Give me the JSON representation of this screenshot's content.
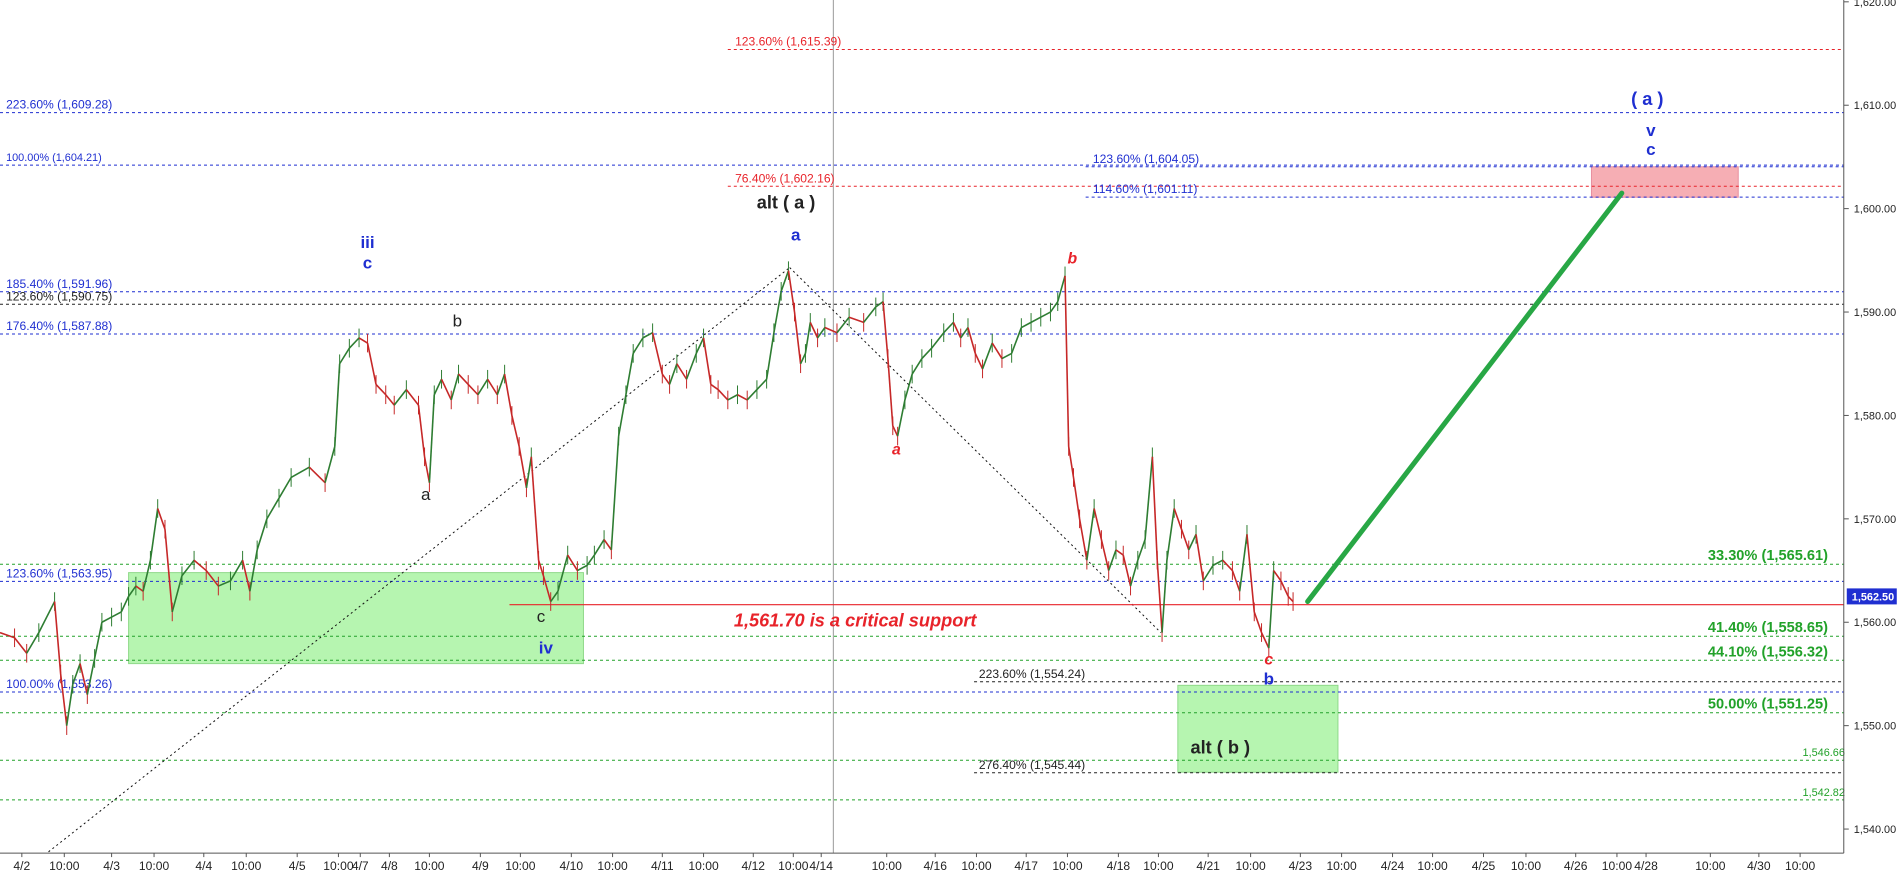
{
  "chart_data": {
    "type": "line",
    "title": "",
    "xlabel": "",
    "ylabel": "",
    "ylim": [
      1537.5,
      1620.0
    ],
    "colors": {
      "background": "#ffffff",
      "up_candle": "#2e7d32",
      "down_candle": "#c62828",
      "blue_fib": "#1f2fd1",
      "red_fib": "#e8232a",
      "green_fib": "#22a22a",
      "black_fib": "#222222",
      "support": "#e8232a",
      "green_zone": "#b6f5b0",
      "pink_zone": "#f6aeb4",
      "projection": "#28a745",
      "wave_blue": "#1f2fd1",
      "wave_red": "#e8232a",
      "wave_black": "#111111",
      "last_price_box": "#1f2fd1"
    },
    "y_axis": {
      "ticks": [
        1540,
        1550,
        1560,
        1570,
        1580,
        1590,
        1600,
        1610,
        1620
      ],
      "tick_labels": [
        "1,540.00",
        "1,550.00",
        "1,560.00",
        "1,570.00",
        "1,580.00",
        "1,590.00",
        "1,600.00",
        "1,610.00",
        "1,620.00"
      ],
      "last_price": 1562.5,
      "last_price_label": "1,562.50"
    },
    "x_axis": {
      "range": [
        0,
        1510
      ],
      "ticks": [
        {
          "x": 18,
          "label": "4/2"
        },
        {
          "x": 53,
          "label": "10:00"
        },
        {
          "x": 92,
          "label": "4/3"
        },
        {
          "x": 127,
          "label": "10:00"
        },
        {
          "x": 168,
          "label": "4/4"
        },
        {
          "x": 203,
          "label": "10:00"
        },
        {
          "x": 245,
          "label": "4/5"
        },
        {
          "x": 279,
          "label": "10:00"
        },
        {
          "x": 297,
          "label": "4/7"
        },
        {
          "x": 321,
          "label": "4/8"
        },
        {
          "x": 354,
          "label": "10:00"
        },
        {
          "x": 396,
          "label": "4/9"
        },
        {
          "x": 429,
          "label": "10:00"
        },
        {
          "x": 471,
          "label": "4/10"
        },
        {
          "x": 505,
          "label": "10:00"
        },
        {
          "x": 546,
          "label": "4/11"
        },
        {
          "x": 580,
          "label": "10:00"
        },
        {
          "x": 621,
          "label": "4/12"
        },
        {
          "x": 654,
          "label": "10:00"
        },
        {
          "x": 677,
          "label": "4/14"
        },
        {
          "x": 731,
          "label": "10:00"
        },
        {
          "x": 771,
          "label": "4/16"
        },
        {
          "x": 805,
          "label": "10:00"
        },
        {
          "x": 846,
          "label": "4/17"
        },
        {
          "x": 880,
          "label": "10:00"
        },
        {
          "x": 922,
          "label": "4/18"
        },
        {
          "x": 955,
          "label": "10:00"
        },
        {
          "x": 996,
          "label": "4/21"
        },
        {
          "x": 1031,
          "label": "10:00"
        },
        {
          "x": 1072,
          "label": "4/23"
        },
        {
          "x": 1106,
          "label": "10:00"
        },
        {
          "x": 1148,
          "label": "4/24"
        },
        {
          "x": 1181,
          "label": "10:00"
        },
        {
          "x": 1223,
          "label": "4/25"
        },
        {
          "x": 1258,
          "label": "10:00"
        },
        {
          "x": 1299,
          "label": "4/26"
        },
        {
          "x": 1333,
          "label": "10:00"
        },
        {
          "x": 1357,
          "label": "4/28"
        },
        {
          "x": 1410,
          "label": "10:00"
        },
        {
          "x": 1450,
          "label": "4/30"
        },
        {
          "x": 1484,
          "label": "10:00"
        }
      ],
      "separator_x": 687
    },
    "price_path": [
      [
        0,
        1559.0
      ],
      [
        12,
        1558.5
      ],
      [
        22,
        1557.0
      ],
      [
        32,
        1559.0
      ],
      [
        45,
        1562.0
      ],
      [
        50,
        1555.0
      ],
      [
        55,
        1550.0
      ],
      [
        60,
        1554.0
      ],
      [
        66,
        1556.0
      ],
      [
        72,
        1553.0
      ],
      [
        78,
        1556.5
      ],
      [
        84,
        1560.0
      ],
      [
        92,
        1560.5
      ],
      [
        100,
        1561.0
      ],
      [
        106,
        1562.5
      ],
      [
        112,
        1563.5
      ],
      [
        118,
        1563.0
      ],
      [
        124,
        1566.0
      ],
      [
        130,
        1571.0
      ],
      [
        136,
        1569.0
      ],
      [
        142,
        1561.0
      ],
      [
        150,
        1564.5
      ],
      [
        160,
        1566.0
      ],
      [
        170,
        1565.0
      ],
      [
        180,
        1563.5
      ],
      [
        190,
        1564.0
      ],
      [
        200,
        1566.0
      ],
      [
        206,
        1563.0
      ],
      [
        212,
        1567.0
      ],
      [
        220,
        1570.0
      ],
      [
        230,
        1572.0
      ],
      [
        240,
        1574.0
      ],
      [
        255,
        1575.0
      ],
      [
        268,
        1573.5
      ],
      [
        276,
        1577.0
      ],
      [
        280,
        1585.0
      ],
      [
        288,
        1586.5
      ],
      [
        296,
        1587.5
      ],
      [
        303,
        1587.0
      ],
      [
        310,
        1583.0
      ],
      [
        318,
        1582.0
      ],
      [
        325,
        1581.0
      ],
      [
        335,
        1582.5
      ],
      [
        345,
        1581.0
      ],
      [
        350,
        1576.0
      ],
      [
        354,
        1573.5
      ],
      [
        358,
        1582.0
      ],
      [
        364,
        1583.5
      ],
      [
        372,
        1581.5
      ],
      [
        378,
        1584.0
      ],
      [
        386,
        1583.0
      ],
      [
        394,
        1582.0
      ],
      [
        402,
        1583.5
      ],
      [
        410,
        1582.0
      ],
      [
        416,
        1584.0
      ],
      [
        422,
        1580.0
      ],
      [
        428,
        1577.0
      ],
      [
        434,
        1573.0
      ],
      [
        438,
        1576.0
      ],
      [
        444,
        1566.0
      ],
      [
        448,
        1564.5
      ],
      [
        454,
        1562.0
      ],
      [
        460,
        1563.0
      ],
      [
        468,
        1566.5
      ],
      [
        476,
        1565.0
      ],
      [
        484,
        1565.5
      ],
      [
        490,
        1566.5
      ],
      [
        498,
        1568.0
      ],
      [
        504,
        1567.0
      ],
      [
        510,
        1578.0
      ],
      [
        516,
        1582.0
      ],
      [
        522,
        1586.0
      ],
      [
        530,
        1587.5
      ],
      [
        538,
        1588.0
      ],
      [
        546,
        1584.0
      ],
      [
        552,
        1583.0
      ],
      [
        558,
        1585.0
      ],
      [
        566,
        1583.5
      ],
      [
        574,
        1586.0
      ],
      [
        580,
        1587.5
      ],
      [
        586,
        1583.0
      ],
      [
        592,
        1582.5
      ],
      [
        600,
        1581.5
      ],
      [
        608,
        1582.0
      ],
      [
        616,
        1581.5
      ],
      [
        624,
        1582.5
      ],
      [
        632,
        1583.5
      ],
      [
        638,
        1588.0
      ],
      [
        644,
        1592.0
      ],
      [
        650,
        1594.0
      ],
      [
        655,
        1590.0
      ],
      [
        660,
        1585.0
      ],
      [
        664,
        1586.0
      ],
      [
        668,
        1589.0
      ],
      [
        674,
        1587.5
      ],
      [
        680,
        1588.5
      ],
      [
        690,
        1588.0
      ],
      [
        700,
        1589.5
      ],
      [
        712,
        1589.0
      ],
      [
        722,
        1590.5
      ],
      [
        728,
        1591.0
      ],
      [
        732,
        1585.5
      ],
      [
        736,
        1579.0
      ],
      [
        740,
        1578.0
      ],
      [
        746,
        1581.5
      ],
      [
        752,
        1584.0
      ],
      [
        760,
        1585.5
      ],
      [
        768,
        1586.5
      ],
      [
        778,
        1588.0
      ],
      [
        786,
        1589.0
      ],
      [
        792,
        1587.5
      ],
      [
        798,
        1588.5
      ],
      [
        804,
        1586.0
      ],
      [
        810,
        1584.5
      ],
      [
        818,
        1587.0
      ],
      [
        826,
        1585.5
      ],
      [
        834,
        1586.0
      ],
      [
        842,
        1588.5
      ],
      [
        850,
        1589.0
      ],
      [
        858,
        1589.5
      ],
      [
        866,
        1590.0
      ],
      [
        872,
        1591.0
      ],
      [
        878,
        1593.5
      ],
      [
        881,
        1577.0
      ],
      [
        885,
        1574.0
      ],
      [
        890,
        1570.0
      ],
      [
        896,
        1566.0
      ],
      [
        902,
        1571.0
      ],
      [
        908,
        1568.0
      ],
      [
        914,
        1565.0
      ],
      [
        920,
        1567.0
      ],
      [
        926,
        1566.5
      ],
      [
        932,
        1563.5
      ],
      [
        938,
        1566.0
      ],
      [
        944,
        1568.0
      ],
      [
        950,
        1576.0
      ],
      [
        954,
        1566.0
      ],
      [
        958,
        1559.0
      ],
      [
        962,
        1566.0
      ],
      [
        968,
        1571.0
      ],
      [
        974,
        1569.0
      ],
      [
        980,
        1567.0
      ],
      [
        986,
        1568.5
      ],
      [
        992,
        1564.0
      ],
      [
        1000,
        1565.5
      ],
      [
        1008,
        1566.0
      ],
      [
        1016,
        1565.0
      ],
      [
        1022,
        1563.0
      ],
      [
        1028,
        1568.5
      ],
      [
        1034,
        1561.0
      ],
      [
        1040,
        1559.0
      ],
      [
        1046,
        1557.5
      ],
      [
        1050,
        1565.0
      ],
      [
        1056,
        1564.0
      ],
      [
        1062,
        1562.5
      ],
      [
        1066,
        1562.0
      ]
    ],
    "fib_levels": [
      {
        "label": "123.60% (1,615.39)",
        "value": 1615.39,
        "color": "red",
        "x0": 600,
        "x1": 1520,
        "label_x": 606,
        "size": 10
      },
      {
        "label": "223.60% (1,609.28)",
        "value": 1609.28,
        "color": "blue",
        "x0": 0,
        "x1": 1520,
        "label_x": 5,
        "size": 10
      },
      {
        "label": "100.00% (1,604.21)",
        "value": 1604.21,
        "color": "blue",
        "x0": 0,
        "x1": 1520,
        "label_x": 5,
        "size": 9
      },
      {
        "label": "123.60% (1,604.05)",
        "value": 1604.05,
        "color": "blue",
        "x0": 895,
        "x1": 1520,
        "label_x": 901,
        "size": 10
      },
      {
        "label": "76.40% (1,602.16)",
        "value": 1602.16,
        "color": "red",
        "x0": 600,
        "x1": 1520,
        "label_x": 606,
        "size": 10
      },
      {
        "label": "114.60% (1,601.11)",
        "value": 1601.11,
        "color": "blue",
        "x0": 895,
        "x1": 1520,
        "label_x": 901,
        "size": 10
      },
      {
        "label": "185.40% (1,591.96)",
        "value": 1591.96,
        "color": "blue",
        "x0": 0,
        "x1": 1520,
        "label_x": 5,
        "size": 10
      },
      {
        "label": "123.60% (1,590.75)",
        "value": 1590.75,
        "color": "black",
        "x0": 0,
        "x1": 1520,
        "label_x": 5,
        "size": 10
      },
      {
        "label": "176.40% (1,587.88)",
        "value": 1587.88,
        "color": "blue",
        "x0": 0,
        "x1": 1520,
        "label_x": 5,
        "size": 10
      },
      {
        "label": "33.30% (1,565.61)",
        "value": 1565.61,
        "color": "green",
        "x0": 0,
        "x1": 1520,
        "label_x": 1408,
        "size": 12,
        "bold": true
      },
      {
        "label": "123.60% (1,563.95)",
        "value": 1563.95,
        "color": "blue",
        "x0": 0,
        "x1": 1520,
        "label_x": 5,
        "size": 10
      },
      {
        "label": "41.40% (1,558.65)",
        "value": 1558.65,
        "color": "green",
        "x0": 0,
        "x1": 1520,
        "label_x": 1408,
        "size": 12,
        "bold": true
      },
      {
        "label": "44.10% (1,556.32)",
        "value": 1556.32,
        "color": "green",
        "x0": 0,
        "x1": 1520,
        "label_x": 1408,
        "size": 12,
        "bold": true
      },
      {
        "label": "223.60% (1,554.24)",
        "value": 1554.24,
        "color": "black",
        "x0": 803,
        "x1": 1520,
        "label_x": 807,
        "size": 10
      },
      {
        "label": "100.00% (1,553.26)",
        "value": 1553.26,
        "color": "blue",
        "x0": 0,
        "x1": 1520,
        "label_x": 5,
        "size": 10
      },
      {
        "label": "50.00% (1,551.25)",
        "value": 1551.25,
        "color": "green",
        "x0": 0,
        "x1": 1520,
        "label_x": 1408,
        "size": 12,
        "bold": true
      },
      {
        "label": "1,546.66",
        "value": 1546.66,
        "color": "green",
        "x0": 0,
        "x1": 1520,
        "label_x": 1486,
        "size": 9
      },
      {
        "label": "276.40% (1,545.44)",
        "value": 1545.44,
        "color": "black",
        "x0": 803,
        "x1": 1520,
        "label_x": 807,
        "size": 10
      },
      {
        "label": "1,542.82",
        "value": 1542.82,
        "color": "green",
        "x0": 0,
        "x1": 1520,
        "label_x": 1486,
        "size": 9
      }
    ],
    "support_line": {
      "value": 1561.7,
      "label": "1,561.70 is a critical support",
      "label_x": 605
    },
    "zones": [
      {
        "name": "green-zone-left",
        "x0": 106,
        "x1": 481,
        "y0": 1556.0,
        "y1": 1564.8,
        "color": "green"
      },
      {
        "name": "green-zone-right",
        "x0": 971,
        "x1": 1103,
        "y0": 1545.5,
        "y1": 1553.9,
        "color": "green"
      },
      {
        "name": "pink-target-zone",
        "x0": 1312,
        "x1": 1433,
        "y0": 1601.1,
        "y1": 1604.05,
        "color": "pink"
      }
    ],
    "dotted_lines": [
      [
        [
          40,
          1537.8
        ],
        [
          651,
          1594.3
        ]
      ],
      [
        [
          651,
          1594.3
        ],
        [
          957,
          1559.0
        ]
      ]
    ],
    "projection": {
      "x0": 1078,
      "y0": 1562.0,
      "x1": 1337,
      "y1": 1601.5
    },
    "wave_labels": [
      {
        "text": "iii",
        "x": 303,
        "value": 1596.2,
        "color": "blue",
        "size": 14,
        "bold": true
      },
      {
        "text": "c",
        "x": 303,
        "value": 1594.2,
        "color": "blue",
        "size": 14,
        "bold": true
      },
      {
        "text": "b",
        "x": 377,
        "value": 1588.6,
        "color": "black",
        "size": 14
      },
      {
        "text": "a",
        "x": 351,
        "value": 1571.8,
        "color": "black",
        "size": 14
      },
      {
        "text": "c",
        "x": 446,
        "value": 1560.0,
        "color": "black",
        "size": 14
      },
      {
        "text": "iv",
        "x": 450,
        "value": 1557.0,
        "color": "blue",
        "size": 14,
        "bold": true
      },
      {
        "text": "alt ( a )",
        "x": 648,
        "value": 1600.0,
        "color": "black",
        "size": 15,
        "bold": true
      },
      {
        "text": "a",
        "x": 656,
        "value": 1596.9,
        "color": "blue",
        "size": 14,
        "bold": true
      },
      {
        "text": "a",
        "x": 739,
        "value": 1576.2,
        "color": "red",
        "size": 13,
        "bold": true,
        "italic": true
      },
      {
        "text": "b",
        "x": 884,
        "value": 1594.7,
        "color": "red",
        "size": 13,
        "bold": true,
        "italic": true
      },
      {
        "text": "c",
        "x": 1046,
        "value": 1555.9,
        "color": "red",
        "size": 13,
        "bold": true,
        "italic": true
      },
      {
        "text": "b",
        "x": 1046,
        "value": 1554.0,
        "color": "blue",
        "size": 14,
        "bold": true
      },
      {
        "text": "alt ( b )",
        "x": 1006,
        "value": 1547.3,
        "color": "black",
        "size": 15,
        "bold": true
      },
      {
        "text": "( a )",
        "x": 1358,
        "value": 1610.0,
        "color": "blue",
        "size": 15,
        "bold": true
      },
      {
        "text": "v",
        "x": 1361,
        "value": 1607.0,
        "color": "blue",
        "size": 14,
        "bold": true
      },
      {
        "text": "c",
        "x": 1361,
        "value": 1605.2,
        "color": "blue",
        "size": 14,
        "bold": true
      }
    ]
  }
}
